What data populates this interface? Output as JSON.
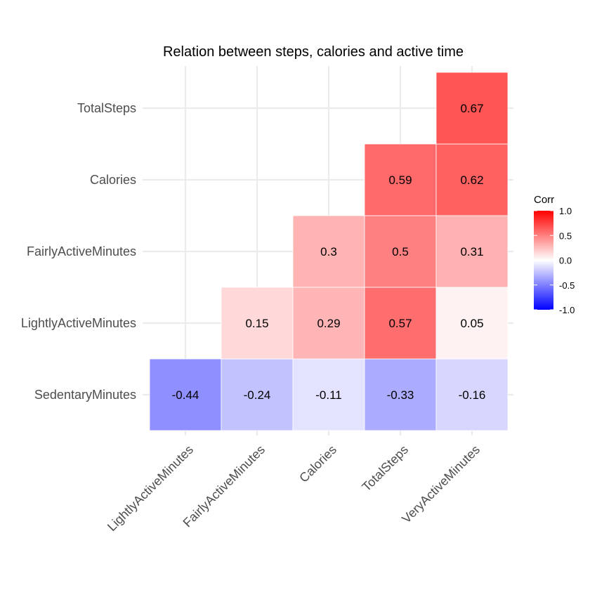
{
  "chart_data": {
    "type": "heatmap",
    "title": "Relation between steps, calories and active time",
    "x_categories": [
      "LightlyActiveMinutes",
      "FairlyActiveMinutes",
      "Calories",
      "TotalSteps",
      "VeryActiveMinutes"
    ],
    "y_categories": [
      "SedentaryMinutes",
      "LightlyActiveMinutes",
      "FairlyActiveMinutes",
      "Calories",
      "TotalSteps"
    ],
    "cells": [
      {
        "x": "LightlyActiveMinutes",
        "y": "SedentaryMinutes",
        "value": -0.44,
        "label": "-0.44"
      },
      {
        "x": "FairlyActiveMinutes",
        "y": "SedentaryMinutes",
        "value": -0.24,
        "label": "-0.24"
      },
      {
        "x": "Calories",
        "y": "SedentaryMinutes",
        "value": -0.11,
        "label": "-0.11"
      },
      {
        "x": "TotalSteps",
        "y": "SedentaryMinutes",
        "value": -0.33,
        "label": "-0.33"
      },
      {
        "x": "VeryActiveMinutes",
        "y": "SedentaryMinutes",
        "value": -0.16,
        "label": "-0.16"
      },
      {
        "x": "FairlyActiveMinutes",
        "y": "LightlyActiveMinutes",
        "value": 0.15,
        "label": "0.15"
      },
      {
        "x": "Calories",
        "y": "LightlyActiveMinutes",
        "value": 0.29,
        "label": "0.29"
      },
      {
        "x": "TotalSteps",
        "y": "LightlyActiveMinutes",
        "value": 0.57,
        "label": "0.57"
      },
      {
        "x": "VeryActiveMinutes",
        "y": "LightlyActiveMinutes",
        "value": 0.05,
        "label": "0.05"
      },
      {
        "x": "Calories",
        "y": "FairlyActiveMinutes",
        "value": 0.3,
        "label": "0.3"
      },
      {
        "x": "TotalSteps",
        "y": "FairlyActiveMinutes",
        "value": 0.5,
        "label": "0.5"
      },
      {
        "x": "VeryActiveMinutes",
        "y": "FairlyActiveMinutes",
        "value": 0.31,
        "label": "0.31"
      },
      {
        "x": "TotalSteps",
        "y": "Calories",
        "value": 0.59,
        "label": "0.59"
      },
      {
        "x": "VeryActiveMinutes",
        "y": "Calories",
        "value": 0.62,
        "label": "0.62"
      },
      {
        "x": "VeryActiveMinutes",
        "y": "TotalSteps",
        "value": 0.67,
        "label": "0.67"
      }
    ],
    "legend": {
      "title": "Corr",
      "range": [
        -1,
        1
      ],
      "ticks": [
        "1.0",
        "0.5",
        "0.0",
        "-0.5",
        "-1.0"
      ],
      "colors": {
        "low": "#0000ff",
        "mid": "#ffffff",
        "high": "#ff0000"
      },
      "placement": "right"
    },
    "grid": true
  }
}
